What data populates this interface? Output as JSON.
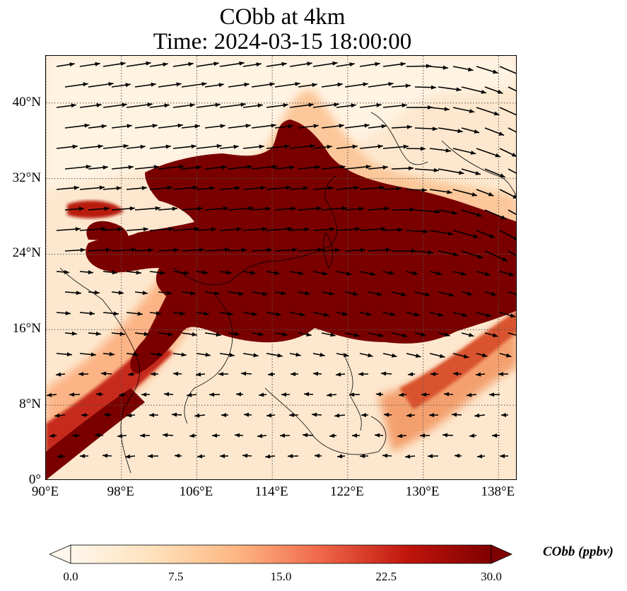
{
  "title": {
    "line1": "CObb at 4km",
    "line2": "Time: 2024-03-15 18:00:00"
  },
  "map": {
    "variable": "CObb",
    "level": "4km",
    "extent": {
      "lon_min": 90,
      "lon_max": 140,
      "lat_min": 0,
      "lat_max": 45
    },
    "lat_ticks": [
      {
        "value": 0,
        "label": "0°"
      },
      {
        "value": 8,
        "label": "8°N"
      },
      {
        "value": 16,
        "label": "16°N"
      },
      {
        "value": 24,
        "label": "24°N"
      },
      {
        "value": 32,
        "label": "32°N"
      },
      {
        "value": 40,
        "label": "40°N"
      }
    ],
    "lon_ticks": [
      {
        "value": 90,
        "label": "90°E"
      },
      {
        "value": 98,
        "label": "98°E"
      },
      {
        "value": 106,
        "label": "106°E"
      },
      {
        "value": 114,
        "label": "114°E"
      },
      {
        "value": 122,
        "label": "122°E"
      },
      {
        "value": 130,
        "label": "130°E"
      },
      {
        "value": 138,
        "label": "138°E"
      }
    ],
    "gridlines": "dotted",
    "wind_vectors": true,
    "plume_color": "#7a0000",
    "background_color": "#fde8cf"
  },
  "colorbar": {
    "label": "CObb (ppbv)",
    "min": 0.0,
    "max": 30.0,
    "extend": "both",
    "ticks": [
      "0.0",
      "7.5",
      "15.0",
      "22.5",
      "30.0"
    ],
    "colormap": "OrRd",
    "colors": [
      "#fff7ec",
      "#fee8c8",
      "#fdd49e",
      "#fdbb84",
      "#fc8d59",
      "#ef6548",
      "#d7301f",
      "#b30000",
      "#7f0000"
    ]
  }
}
